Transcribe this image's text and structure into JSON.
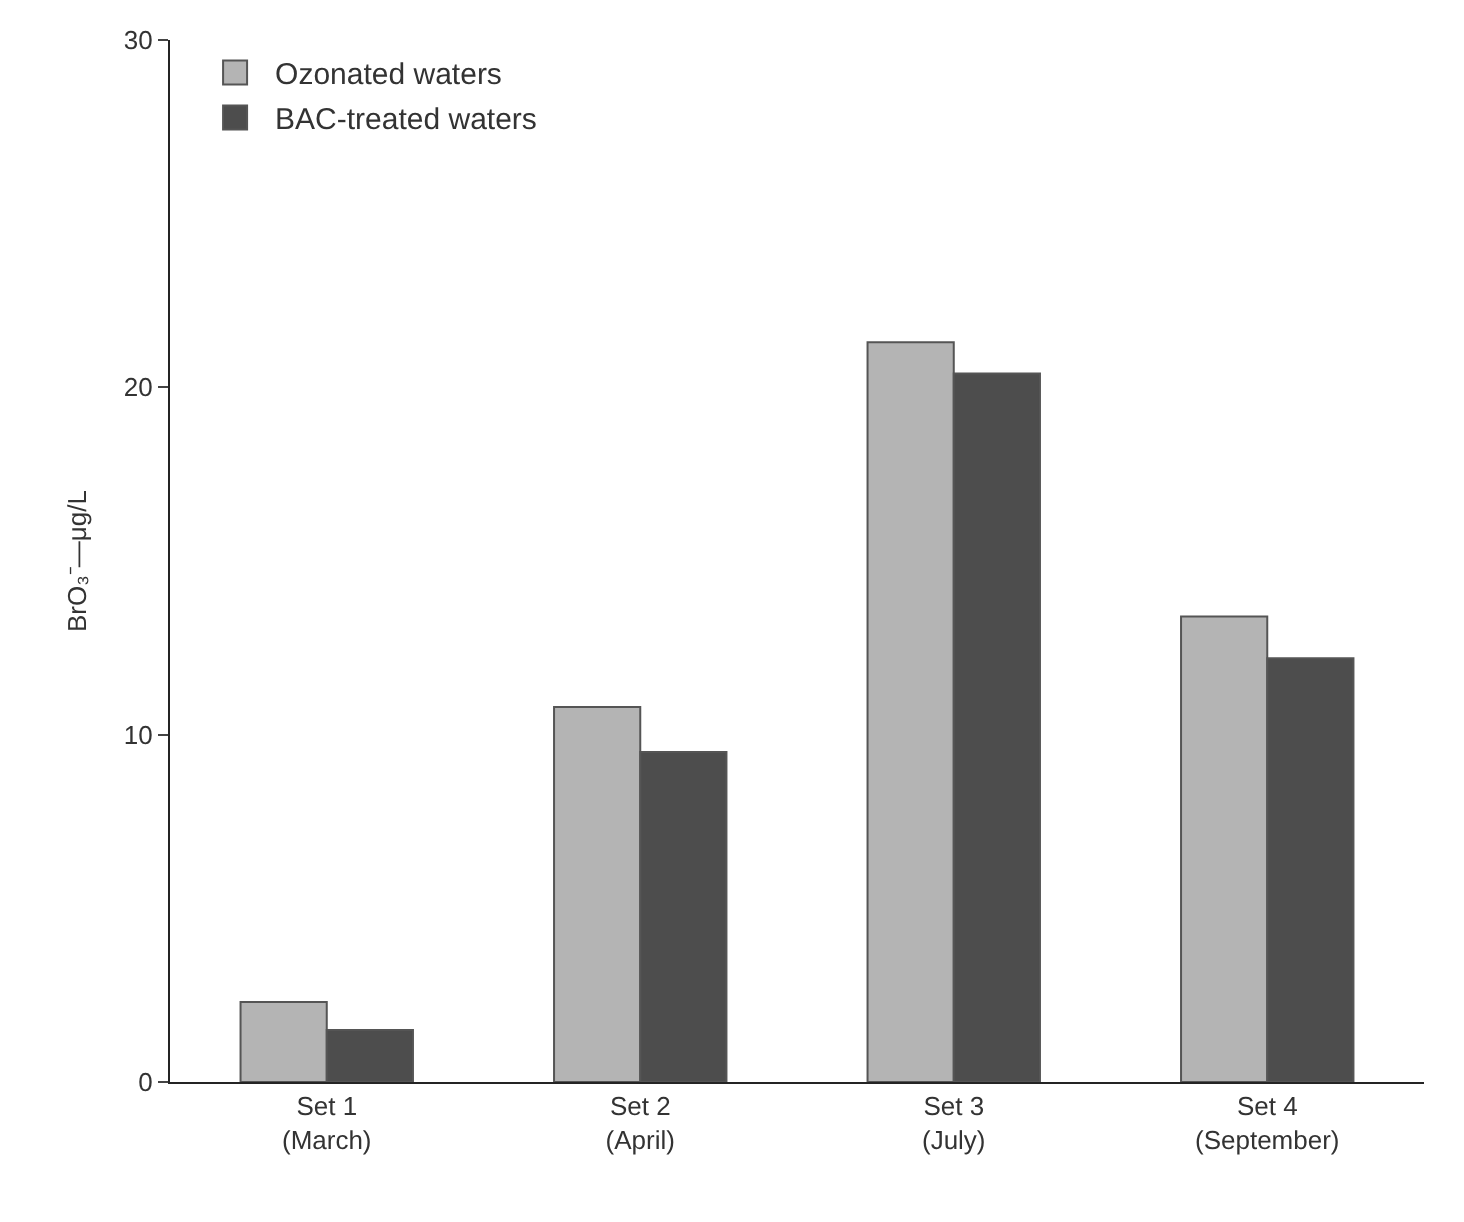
{
  "chart_data": {
    "type": "bar",
    "ylabel": "BrO₃⁻—μg/L",
    "categories": [
      "Set 1\n(March)",
      "Set 2\n(April)",
      "Set 3\n(July)",
      "Set 4\n(September)"
    ],
    "series": [
      {
        "name": "Ozonated waters",
        "color": "#b4b4b4",
        "values": [
          2.3,
          10.8,
          21.3,
          13.4
        ]
      },
      {
        "name": "BAC-treated waters",
        "color": "#4d4d4d",
        "values": [
          1.5,
          9.5,
          20.4,
          12.2
        ]
      }
    ],
    "ylim": [
      0,
      30
    ],
    "yticks": [
      0,
      10,
      20,
      30
    ],
    "grid": false,
    "legend": "top left"
  }
}
